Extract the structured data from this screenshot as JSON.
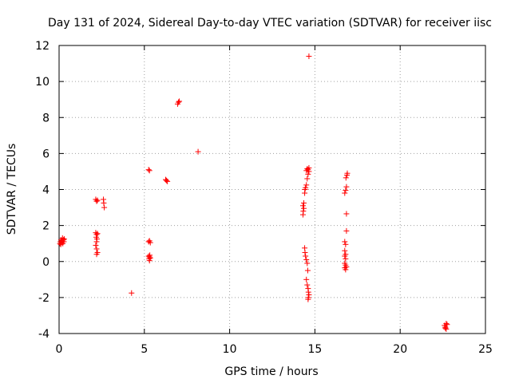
{
  "chart_data": {
    "type": "scatter",
    "title": "Day 131 of 2024, Sidereal Day-to-day VTEC variation (SDTVAR) for receiver iisc",
    "xlabel": "GPS time / hours",
    "ylabel": "SDTVAR / TECUs",
    "xlim": [
      0,
      25
    ],
    "ylim": [
      -4,
      12
    ],
    "xticks": [
      0,
      5,
      10,
      15,
      20,
      25
    ],
    "yticks": [
      -4,
      -2,
      0,
      2,
      4,
      6,
      8,
      10,
      12
    ],
    "grid": true,
    "marker": "+",
    "color": "#ff0000",
    "series": [
      {
        "name": "SDTVAR",
        "points": [
          [
            0.05,
            1.0
          ],
          [
            0.08,
            1.1
          ],
          [
            0.1,
            0.95
          ],
          [
            0.12,
            1.2
          ],
          [
            0.15,
            1.05
          ],
          [
            0.18,
            1.15
          ],
          [
            0.2,
            1.3
          ],
          [
            0.22,
            1.0
          ],
          [
            0.25,
            1.2
          ],
          [
            0.28,
            1.1
          ],
          [
            0.3,
            1.25
          ],
          [
            2.15,
            3.45
          ],
          [
            2.2,
            3.35
          ],
          [
            2.25,
            3.4
          ],
          [
            2.15,
            1.6
          ],
          [
            2.2,
            1.5
          ],
          [
            2.25,
            1.55
          ],
          [
            2.18,
            1.35
          ],
          [
            2.22,
            1.25
          ],
          [
            2.2,
            1.1
          ],
          [
            2.15,
            0.9
          ],
          [
            2.2,
            0.7
          ],
          [
            2.25,
            0.5
          ],
          [
            2.2,
            0.4
          ],
          [
            2.6,
            3.45
          ],
          [
            2.62,
            3.25
          ],
          [
            2.65,
            3.0
          ],
          [
            4.25,
            -1.75
          ],
          [
            5.25,
            5.1
          ],
          [
            5.3,
            5.05
          ],
          [
            5.25,
            1.1
          ],
          [
            5.3,
            1.15
          ],
          [
            5.35,
            1.05
          ],
          [
            5.25,
            0.3
          ],
          [
            5.3,
            0.25
          ],
          [
            5.35,
            0.2
          ],
          [
            5.28,
            0.15
          ],
          [
            5.32,
            0.35
          ],
          [
            5.3,
            0.05
          ],
          [
            6.25,
            4.55
          ],
          [
            6.3,
            4.5
          ],
          [
            6.35,
            4.45
          ],
          [
            6.95,
            8.75
          ],
          [
            7.0,
            8.85
          ],
          [
            7.05,
            8.9
          ],
          [
            8.15,
            6.1
          ],
          [
            14.3,
            2.6
          ],
          [
            14.32,
            2.8
          ],
          [
            14.35,
            2.95
          ],
          [
            14.3,
            3.1
          ],
          [
            14.35,
            3.25
          ],
          [
            14.4,
            3.8
          ],
          [
            14.42,
            4.0
          ],
          [
            14.45,
            4.1
          ],
          [
            14.5,
            4.25
          ],
          [
            14.55,
            4.6
          ],
          [
            14.6,
            4.85
          ],
          [
            14.65,
            5.0
          ],
          [
            14.6,
            5.1
          ],
          [
            14.65,
            5.2
          ],
          [
            14.55,
            5.15
          ],
          [
            14.5,
            5.05
          ],
          [
            14.4,
            0.75
          ],
          [
            14.42,
            0.5
          ],
          [
            14.45,
            0.3
          ],
          [
            14.5,
            0.1
          ],
          [
            14.55,
            -0.1
          ],
          [
            14.58,
            -0.5
          ],
          [
            14.5,
            -1.0
          ],
          [
            14.55,
            -1.3
          ],
          [
            14.6,
            -1.5
          ],
          [
            14.62,
            -1.7
          ],
          [
            14.65,
            -1.85
          ],
          [
            14.62,
            -2.0
          ],
          [
            14.6,
            -2.1
          ],
          [
            14.65,
            11.4
          ],
          [
            16.75,
            3.8
          ],
          [
            16.8,
            3.95
          ],
          [
            16.85,
            4.15
          ],
          [
            16.82,
            4.65
          ],
          [
            16.88,
            4.8
          ],
          [
            16.9,
            4.9
          ],
          [
            16.85,
            2.65
          ],
          [
            16.85,
            1.7
          ],
          [
            16.75,
            1.1
          ],
          [
            16.8,
            0.95
          ],
          [
            16.75,
            0.6
          ],
          [
            16.8,
            0.4
          ],
          [
            16.75,
            0.3
          ],
          [
            16.8,
            0.15
          ],
          [
            16.75,
            -0.1
          ],
          [
            16.8,
            -0.2
          ],
          [
            16.85,
            -0.3
          ],
          [
            16.8,
            -0.45
          ],
          [
            16.75,
            -0.35
          ],
          [
            22.6,
            -3.55
          ],
          [
            22.65,
            -3.65
          ],
          [
            22.7,
            -3.75
          ],
          [
            22.75,
            -3.5
          ],
          [
            22.7,
            -3.45
          ],
          [
            22.65,
            -3.7
          ]
        ]
      }
    ]
  }
}
